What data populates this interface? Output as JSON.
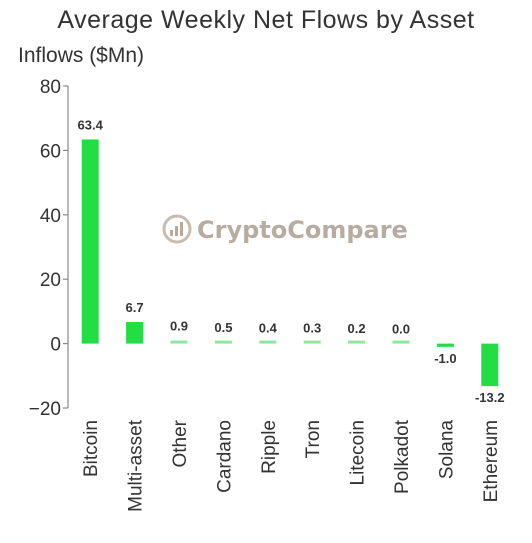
{
  "chart_data": {
    "type": "bar",
    "title": "Average Weekly Net Flows by Asset",
    "ylabel": "Inflows ($Mn)",
    "xlabel": "",
    "categories": [
      "Bitcoin",
      "Multi-asset",
      "Other",
      "Cardano",
      "Ripple",
      "Tron",
      "Litecoin",
      "Polkadot",
      "Solana",
      "Ethereum"
    ],
    "values": [
      63.4,
      6.7,
      0.9,
      0.5,
      0.4,
      0.3,
      0.2,
      0.0,
      -1.0,
      -13.2
    ],
    "data_labels": [
      "63.4",
      "6.7",
      "0.9",
      "0.5",
      "0.4",
      "0.3",
      "0.2",
      "0.0",
      "-1.0",
      "-13.2"
    ],
    "ylim": [
      -20,
      80
    ],
    "yticks": [
      -20,
      0,
      20,
      40,
      60,
      80
    ],
    "ytick_labels": [
      "−20",
      "0",
      "20",
      "40",
      "60",
      "80"
    ],
    "grid": false,
    "legend": "none",
    "bar_colors": [
      "#22dd44",
      "#22dd44",
      "#22dd44",
      "#22dd44",
      "#22dd44",
      "#22dd44",
      "#22dd44",
      "#22dd44",
      "#22dd44",
      "#22dd44"
    ],
    "bar_color_light": "#8ee89c",
    "watermark": "CryptoCompare"
  }
}
